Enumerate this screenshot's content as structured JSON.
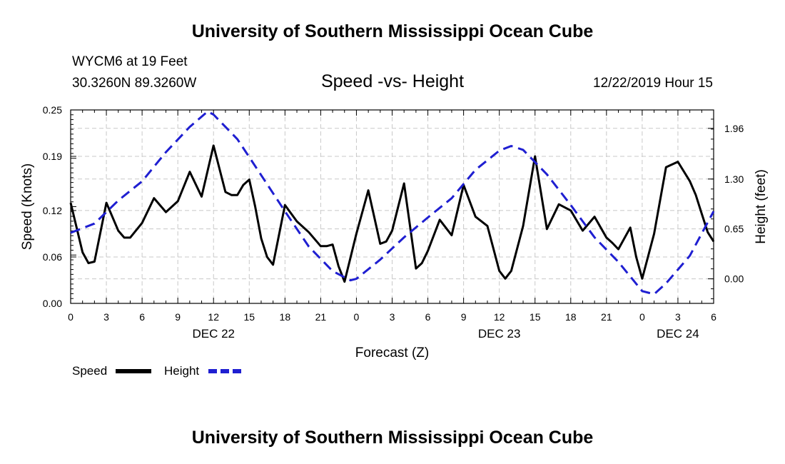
{
  "page": {
    "title": "University of Southern Mississippi Ocean Cube",
    "footer": "University of Southern Mississippi Ocean Cube",
    "station": "WYCM6 at 19 Feet",
    "coords": "30.3260N 89.3260W",
    "subtitle": "Speed -vs- Height",
    "date_hour": "12/22/2019 Hour 15"
  },
  "chart_data": {
    "type": "line",
    "title": "Speed -vs- Height",
    "xlabel": "Forecast (Z)",
    "ylabel": "Speed (Knots)",
    "y2label": "Height (feet)",
    "grid": true,
    "x_range_hours": [
      0,
      54
    ],
    "ylim": [
      0,
      0.25
    ],
    "y2lim": [
      -0.32,
      2.2
    ],
    "x_ticks": [
      {
        "h": 0,
        "label": "0"
      },
      {
        "h": 3,
        "label": "3"
      },
      {
        "h": 6,
        "label": "6"
      },
      {
        "h": 9,
        "label": "9"
      },
      {
        "h": 12,
        "label": "12"
      },
      {
        "h": 15,
        "label": "15"
      },
      {
        "h": 18,
        "label": "18"
      },
      {
        "h": 21,
        "label": "21"
      },
      {
        "h": 24,
        "label": "0"
      },
      {
        "h": 27,
        "label": "3"
      },
      {
        "h": 30,
        "label": "6"
      },
      {
        "h": 33,
        "label": "9"
      },
      {
        "h": 36,
        "label": "12"
      },
      {
        "h": 39,
        "label": "15"
      },
      {
        "h": 42,
        "label": "18"
      },
      {
        "h": 45,
        "label": "21"
      },
      {
        "h": 48,
        "label": "0"
      },
      {
        "h": 51,
        "label": "3"
      },
      {
        "h": 54,
        "label": "6"
      }
    ],
    "day_labels": [
      {
        "h": 12,
        "label": "DEC 22"
      },
      {
        "h": 36,
        "label": "DEC 23"
      },
      {
        "h": 51,
        "label": "DEC 24"
      }
    ],
    "y_ticks": [
      {
        "v": 0.0,
        "label": "0.00"
      },
      {
        "v": 0.06,
        "label": "0.06"
      },
      {
        "v": 0.12,
        "label": "0.12"
      },
      {
        "v": 0.19,
        "label": "0.19"
      },
      {
        "v": 0.25,
        "label": "0.25"
      }
    ],
    "y2_ticks": [
      {
        "v": 0.0,
        "label": "0.00"
      },
      {
        "v": 0.65,
        "label": "0.65"
      },
      {
        "v": 1.3,
        "label": "1.30"
      },
      {
        "v": 1.96,
        "label": "1.96"
      }
    ],
    "series": [
      {
        "name": "Speed",
        "axis": "left",
        "color": "#000000",
        "dash": false,
        "points": [
          [
            0,
            0.13
          ],
          [
            1,
            0.066
          ],
          [
            1.5,
            0.052
          ],
          [
            2,
            0.054
          ],
          [
            3,
            0.13
          ],
          [
            4,
            0.094
          ],
          [
            4.5,
            0.085
          ],
          [
            5,
            0.085
          ],
          [
            6,
            0.104
          ],
          [
            7,
            0.136
          ],
          [
            8,
            0.118
          ],
          [
            9,
            0.132
          ],
          [
            10,
            0.17
          ],
          [
            11,
            0.138
          ],
          [
            12,
            0.204
          ],
          [
            13,
            0.144
          ],
          [
            13.5,
            0.14
          ],
          [
            14,
            0.14
          ],
          [
            14.5,
            0.153
          ],
          [
            15,
            0.16
          ],
          [
            15.5,
            0.125
          ],
          [
            16,
            0.084
          ],
          [
            16.5,
            0.06
          ],
          [
            17,
            0.05
          ],
          [
            18,
            0.127
          ],
          [
            19,
            0.106
          ],
          [
            20,
            0.092
          ],
          [
            21,
            0.074
          ],
          [
            21.5,
            0.074
          ],
          [
            22,
            0.076
          ],
          [
            22.5,
            0.048
          ],
          [
            23,
            0.028
          ],
          [
            24,
            0.09
          ],
          [
            25,
            0.146
          ],
          [
            26,
            0.077
          ],
          [
            26.5,
            0.08
          ],
          [
            27,
            0.094
          ],
          [
            28,
            0.155
          ],
          [
            29,
            0.045
          ],
          [
            29.5,
            0.052
          ],
          [
            30,
            0.068
          ],
          [
            31,
            0.108
          ],
          [
            32,
            0.088
          ],
          [
            33,
            0.153
          ],
          [
            34,
            0.112
          ],
          [
            35,
            0.1
          ],
          [
            36,
            0.042
          ],
          [
            36.5,
            0.032
          ],
          [
            37,
            0.042
          ],
          [
            38,
            0.1
          ],
          [
            39,
            0.19
          ],
          [
            40,
            0.096
          ],
          [
            41,
            0.128
          ],
          [
            42,
            0.12
          ],
          [
            43,
            0.094
          ],
          [
            44,
            0.112
          ],
          [
            45,
            0.085
          ],
          [
            45.5,
            0.078
          ],
          [
            46,
            0.07
          ],
          [
            47,
            0.098
          ],
          [
            47.5,
            0.06
          ],
          [
            48,
            0.032
          ],
          [
            49,
            0.09
          ],
          [
            50,
            0.176
          ],
          [
            51,
            0.183
          ],
          [
            52,
            0.158
          ],
          [
            52.5,
            0.14
          ],
          [
            53,
            0.116
          ],
          [
            53.5,
            0.092
          ],
          [
            54,
            0.08
          ]
        ]
      },
      {
        "name": "Height",
        "axis": "right",
        "color": "#1f1fd1",
        "dash": true,
        "points": [
          [
            0,
            0.6
          ],
          [
            2,
            0.72
          ],
          [
            4,
            1.02
          ],
          [
            6,
            1.27
          ],
          [
            8,
            1.65
          ],
          [
            10,
            1.98
          ],
          [
            11.5,
            2.18
          ],
          [
            12,
            2.14
          ],
          [
            14,
            1.82
          ],
          [
            16,
            1.35
          ],
          [
            18,
            0.88
          ],
          [
            20,
            0.42
          ],
          [
            22,
            0.1
          ],
          [
            23.5,
            -0.02
          ],
          [
            24,
            0.0
          ],
          [
            26,
            0.25
          ],
          [
            28,
            0.54
          ],
          [
            30,
            0.8
          ],
          [
            32,
            1.05
          ],
          [
            34,
            1.42
          ],
          [
            36,
            1.67
          ],
          [
            37,
            1.73
          ],
          [
            38,
            1.68
          ],
          [
            40,
            1.36
          ],
          [
            42,
            0.96
          ],
          [
            44,
            0.54
          ],
          [
            46,
            0.22
          ],
          [
            48,
            -0.16
          ],
          [
            49,
            -0.2
          ],
          [
            50,
            -0.06
          ],
          [
            52,
            0.3
          ],
          [
            54,
            0.88
          ]
        ]
      }
    ],
    "legend": [
      {
        "label": "Speed",
        "color": "#000000",
        "dash": false
      },
      {
        "label": "Height",
        "color": "#1f1fd1",
        "dash": true
      }
    ]
  }
}
